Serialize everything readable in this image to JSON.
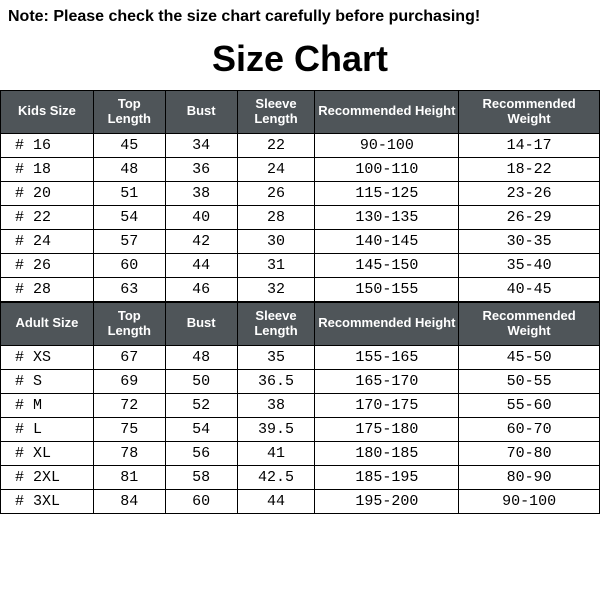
{
  "note": "Note: Please check the size chart carefully before purchasing!",
  "title": "Size Chart",
  "kids": {
    "columns": [
      "Kids Size",
      "Top Length",
      "Bust",
      "Sleeve Length",
      "Recommended Height",
      "Recommended Weight"
    ],
    "rows": [
      [
        "# 16",
        "45",
        "34",
        "22",
        "90-100",
        "14-17"
      ],
      [
        "# 18",
        "48",
        "36",
        "24",
        "100-110",
        "18-22"
      ],
      [
        "# 20",
        "51",
        "38",
        "26",
        "115-125",
        "23-26"
      ],
      [
        "# 22",
        "54",
        "40",
        "28",
        "130-135",
        "26-29"
      ],
      [
        "# 24",
        "57",
        "42",
        "30",
        "140-145",
        "30-35"
      ],
      [
        "# 26",
        "60",
        "44",
        "31",
        "145-150",
        "35-40"
      ],
      [
        "# 28",
        "63",
        "46",
        "32",
        "150-155",
        "40-45"
      ]
    ]
  },
  "adult": {
    "columns": [
      "Adult Size",
      "Top Length",
      "Bust",
      "Sleeve Length",
      "Recommended Height",
      "Recommended Weight"
    ],
    "rows": [
      [
        "# XS",
        "67",
        "48",
        "35",
        "155-165",
        "45-50"
      ],
      [
        "# S",
        "69",
        "50",
        "36.5",
        "165-170",
        "50-55"
      ],
      [
        "# M",
        "72",
        "52",
        "38",
        "170-175",
        "55-60"
      ],
      [
        "# L",
        "75",
        "54",
        "39.5",
        "175-180",
        "60-70"
      ],
      [
        "# XL",
        "78",
        "56",
        "41",
        "180-185",
        "70-80"
      ],
      [
        "# 2XL",
        "81",
        "58",
        "42.5",
        "185-195",
        "80-90"
      ],
      [
        "# 3XL",
        "84",
        "60",
        "44",
        "195-200",
        "90-100"
      ]
    ]
  },
  "styling": {
    "header_bg": "#4f5559",
    "header_fg": "#ffffff",
    "border_color": "#000000",
    "body_bg": "#ffffff",
    "title_fontsize": 36,
    "note_fontsize": 16,
    "th_fontsize": 13,
    "td_fontsize": 15,
    "col_widths_pct": [
      15.5,
      12,
      12,
      13,
      24,
      23.5
    ]
  }
}
